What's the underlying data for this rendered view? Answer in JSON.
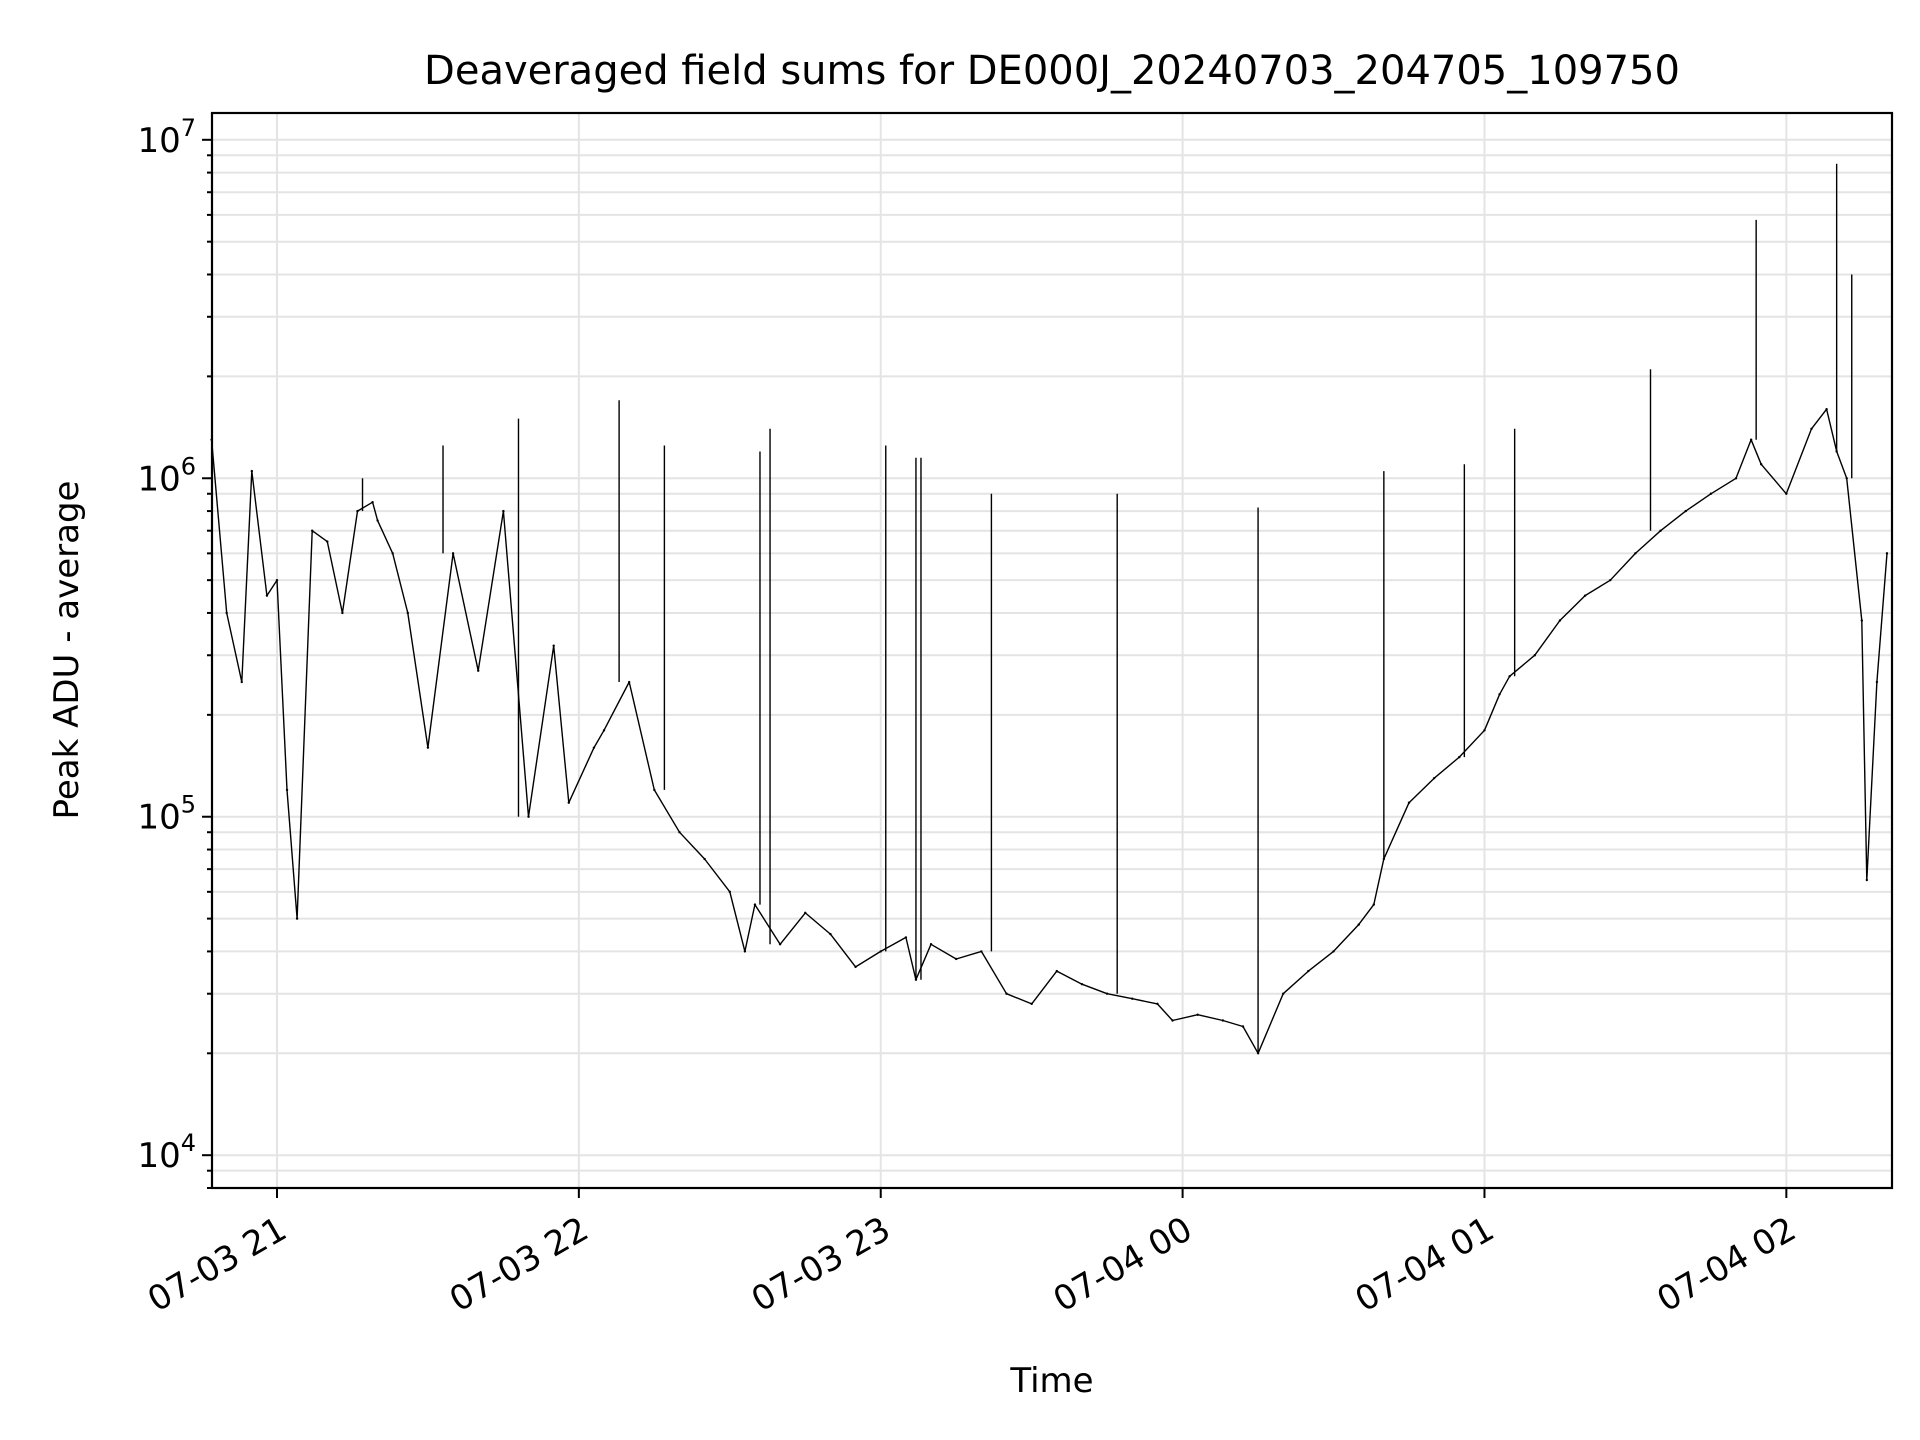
{
  "chart_data": {
    "type": "line",
    "title": "Deaveraged field sums for DE000J_20240703_204705_109750",
    "xlabel": "Time",
    "ylabel": "Peak ADU - average",
    "yscale": "log",
    "ylim": [
      8000,
      12000000
    ],
    "xlim": [
      "2024-07-03 20:47:05",
      "2024-07-04 02:21:00"
    ],
    "grid": true,
    "line_color": "#000000",
    "x_ticks": [
      {
        "t": "2024-07-03 21:00",
        "label": "07-03 21"
      },
      {
        "t": "2024-07-03 22:00",
        "label": "07-03 22"
      },
      {
        "t": "2024-07-03 23:00",
        "label": "07-03 23"
      },
      {
        "t": "2024-07-04 00:00",
        "label": "07-04 00"
      },
      {
        "t": "2024-07-04 01:00",
        "label": "07-04 01"
      },
      {
        "t": "2024-07-04 02:00",
        "label": "07-04 02"
      }
    ],
    "y_ticks": [
      {
        "value": 10000,
        "base": "10",
        "exp": "4"
      },
      {
        "value": 100000,
        "base": "10",
        "exp": "5"
      },
      {
        "value": 1000000,
        "base": "10",
        "exp": "6"
      },
      {
        "value": 10000000,
        "base": "10",
        "exp": "7"
      }
    ],
    "series": [
      {
        "x": [
          "2024-07-03 20:47",
          "2024-07-03 20:50",
          "2024-07-03 20:53",
          "2024-07-03 20:55",
          "2024-07-03 20:58",
          "2024-07-03 21:00",
          "2024-07-03 21:02",
          "2024-07-03 21:04",
          "2024-07-03 21:07",
          "2024-07-03 21:10",
          "2024-07-03 21:13",
          "2024-07-03 21:16",
          "2024-07-03 21:19",
          "2024-07-03 21:20",
          "2024-07-03 21:23",
          "2024-07-03 21:26",
          "2024-07-03 21:30",
          "2024-07-03 21:35",
          "2024-07-03 21:40",
          "2024-07-03 21:45",
          "2024-07-03 21:50",
          "2024-07-03 21:55",
          "2024-07-03 21:58",
          "2024-07-03 22:03",
          "2024-07-03 22:05",
          "2024-07-03 22:10",
          "2024-07-03 22:15",
          "2024-07-03 22:20",
          "2024-07-03 22:25",
          "2024-07-03 22:30",
          "2024-07-03 22:33",
          "2024-07-03 22:35",
          "2024-07-03 22:40",
          "2024-07-03 22:45",
          "2024-07-03 22:50",
          "2024-07-03 22:55",
          "2024-07-03 23:00",
          "2024-07-03 23:05",
          "2024-07-03 23:07",
          "2024-07-03 23:10",
          "2024-07-03 23:15",
          "2024-07-03 23:20",
          "2024-07-03 23:25",
          "2024-07-03 23:30",
          "2024-07-03 23:35",
          "2024-07-03 23:40",
          "2024-07-03 23:45",
          "2024-07-03 23:50",
          "2024-07-03 23:55",
          "2024-07-03 23:58",
          "2024-07-04 00:03",
          "2024-07-04 00:08",
          "2024-07-04 00:12",
          "2024-07-04 00:15",
          "2024-07-04 00:20",
          "2024-07-04 00:25",
          "2024-07-04 00:30",
          "2024-07-04 00:35",
          "2024-07-04 00:38",
          "2024-07-04 00:40",
          "2024-07-04 00:45",
          "2024-07-04 00:50",
          "2024-07-04 00:55",
          "2024-07-04 01:00",
          "2024-07-04 01:03",
          "2024-07-04 01:05",
          "2024-07-04 01:10",
          "2024-07-04 01:15",
          "2024-07-04 01:20",
          "2024-07-04 01:25",
          "2024-07-04 01:30",
          "2024-07-04 01:35",
          "2024-07-04 01:40",
          "2024-07-04 01:45",
          "2024-07-04 01:50",
          "2024-07-04 01:53",
          "2024-07-04 01:55",
          "2024-07-04 02:00",
          "2024-07-04 02:05",
          "2024-07-04 02:08",
          "2024-07-04 02:10",
          "2024-07-04 02:12",
          "2024-07-04 02:15",
          "2024-07-04 02:16",
          "2024-07-04 02:18",
          "2024-07-04 02:20"
        ],
        "values": [
          1300000,
          400000,
          250000,
          1050000,
          450000,
          500000,
          120000,
          50000,
          700000,
          650000,
          400000,
          800000,
          850000,
          750000,
          600000,
          400000,
          160000,
          600000,
          270000,
          800000,
          100000,
          320000,
          110000,
          160000,
          180000,
          250000,
          120000,
          90000,
          75000,
          60000,
          40000,
          55000,
          42000,
          52000,
          45000,
          36000,
          40000,
          44000,
          33000,
          42000,
          38000,
          40000,
          30000,
          28000,
          35000,
          32000,
          30000,
          29000,
          28000,
          25000,
          26000,
          25000,
          24000,
          20000,
          30000,
          35000,
          40000,
          48000,
          55000,
          75000,
          110000,
          130000,
          150000,
          180000,
          230000,
          260000,
          300000,
          380000,
          450000,
          500000,
          600000,
          700000,
          800000,
          900000,
          1000000,
          1300000,
          1100000,
          900000,
          1400000,
          1600000,
          1200000,
          1000000,
          380000,
          65000,
          250000,
          600000
        ]
      }
    ],
    "spikes": [
      {
        "t": "2024-07-03 21:17",
        "value": 1000000
      },
      {
        "t": "2024-07-03 21:33",
        "value": 1250000
      },
      {
        "t": "2024-07-03 21:48",
        "value": 1500000
      },
      {
        "t": "2024-07-03 22:08",
        "value": 1700000
      },
      {
        "t": "2024-07-03 22:17",
        "value": 1250000
      },
      {
        "t": "2024-07-03 22:36",
        "value": 1200000
      },
      {
        "t": "2024-07-03 22:38",
        "value": 1400000
      },
      {
        "t": "2024-07-03 23:01",
        "value": 1250000
      },
      {
        "t": "2024-07-03 23:07",
        "value": 1150000
      },
      {
        "t": "2024-07-03 23:08",
        "value": 1150000
      },
      {
        "t": "2024-07-03 23:22",
        "value": 900000
      },
      {
        "t": "2024-07-03 23:47",
        "value": 900000
      },
      {
        "t": "2024-07-04 00:15",
        "value": 820000
      },
      {
        "t": "2024-07-04 00:40",
        "value": 1050000
      },
      {
        "t": "2024-07-04 00:56",
        "value": 1100000
      },
      {
        "t": "2024-07-04 01:06",
        "value": 1400000
      },
      {
        "t": "2024-07-04 01:33",
        "value": 2100000
      },
      {
        "t": "2024-07-04 01:54",
        "value": 5800000
      },
      {
        "t": "2024-07-04 02:10",
        "value": 8500000
      },
      {
        "t": "2024-07-04 02:13",
        "value": 4000000
      }
    ]
  }
}
